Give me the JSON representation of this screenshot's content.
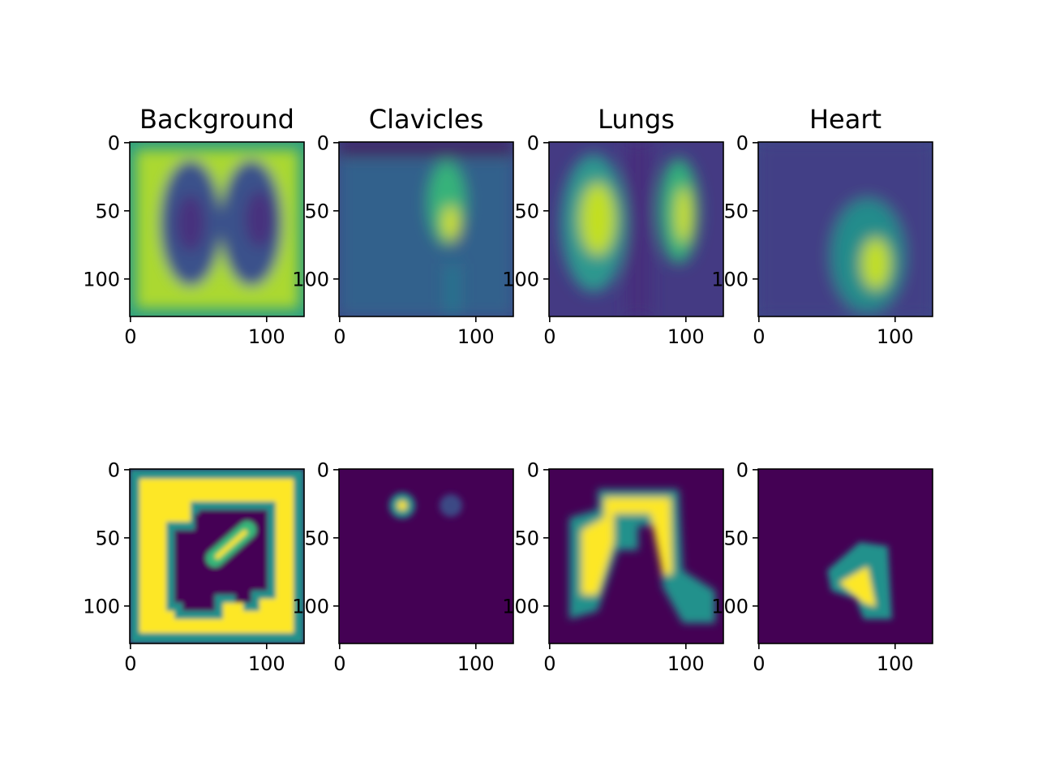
{
  "chart_data": [
    {
      "type": "heatmap",
      "title": "Background",
      "colormap": "viridis",
      "image_size": [
        128,
        128
      ],
      "xticks": [
        0,
        100
      ],
      "yticks": [
        0,
        50,
        100
      ],
      "xticks_labels": [
        "0",
        "100"
      ],
      "yticks_labels": [
        "0",
        "50",
        "100"
      ],
      "row": 1,
      "col": 1
    },
    {
      "type": "heatmap",
      "title": "Clavicles",
      "colormap": "viridis",
      "image_size": [
        128,
        128
      ],
      "xticks": [
        0,
        100
      ],
      "yticks": [
        0,
        50,
        100
      ],
      "xticks_labels": [
        "0",
        "100"
      ],
      "yticks_labels": [
        "0",
        "50",
        "100"
      ],
      "row": 1,
      "col": 2
    },
    {
      "type": "heatmap",
      "title": "Lungs",
      "colormap": "viridis",
      "image_size": [
        128,
        128
      ],
      "xticks": [
        0,
        100
      ],
      "yticks": [
        0,
        50,
        100
      ],
      "xticks_labels": [
        "0",
        "100"
      ],
      "yticks_labels": [
        "0",
        "50",
        "100"
      ],
      "row": 1,
      "col": 3
    },
    {
      "type": "heatmap",
      "title": "Heart",
      "colormap": "viridis",
      "image_size": [
        128,
        128
      ],
      "xticks": [
        0,
        100
      ],
      "yticks": [
        0,
        50,
        100
      ],
      "xticks_labels": [
        "0",
        "100"
      ],
      "yticks_labels": [
        "0",
        "50",
        "100"
      ],
      "row": 1,
      "col": 4
    },
    {
      "type": "heatmap",
      "title": "",
      "colormap": "viridis",
      "image_size": [
        128,
        128
      ],
      "xticks": [
        0,
        100
      ],
      "yticks": [
        0,
        50,
        100
      ],
      "xticks_labels": [
        "0",
        "100"
      ],
      "yticks_labels": [
        "0",
        "50",
        "100"
      ],
      "row": 2,
      "col": 1
    },
    {
      "type": "heatmap",
      "title": "",
      "colormap": "viridis",
      "image_size": [
        128,
        128
      ],
      "xticks": [
        0,
        100
      ],
      "yticks": [
        0,
        50,
        100
      ],
      "xticks_labels": [
        "0",
        "100"
      ],
      "yticks_labels": [
        "0",
        "50",
        "100"
      ],
      "row": 2,
      "col": 2
    },
    {
      "type": "heatmap",
      "title": "",
      "colormap": "viridis",
      "image_size": [
        128,
        128
      ],
      "xticks": [
        0,
        100
      ],
      "yticks": [
        0,
        50,
        100
      ],
      "xticks_labels": [
        "0",
        "100"
      ],
      "yticks_labels": [
        "0",
        "50",
        "100"
      ],
      "row": 2,
      "col": 3
    },
    {
      "type": "heatmap",
      "title": "",
      "colormap": "viridis",
      "image_size": [
        128,
        128
      ],
      "xticks": [
        0,
        100
      ],
      "yticks": [
        0,
        50,
        100
      ],
      "xticks_labels": [
        "0",
        "100"
      ],
      "yticks_labels": [
        "0",
        "50",
        "100"
      ],
      "row": 2,
      "col": 4
    }
  ],
  "colors": {
    "low": "#440154",
    "high": "#fde725",
    "mid": "#21918c"
  }
}
